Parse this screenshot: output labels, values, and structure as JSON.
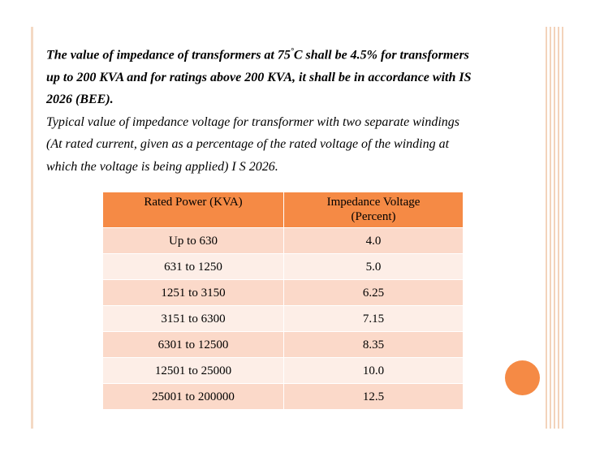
{
  "paragraph_bold": {
    "line1_before_degree": "The value of impedance of transformers at 75",
    "degree": "°",
    "line1_after_degree": "C shall be 4.5% for transformers",
    "line2": "up to 200 KVA and for ratings above 200 KVA, it shall be in accordance with IS",
    "line3": "2026 (BEE)."
  },
  "paragraph_italic": {
    "line1": "Typical value of impedance voltage for transformer with two separate windings",
    "line2": "(At rated current, given as a percentage of the rated voltage of the winding at",
    "line3": "which the voltage is being applied) I S 2026."
  },
  "table": {
    "headers": {
      "rated_power": "Rated Power (KVA)",
      "impedance_line1": "Impedance Voltage",
      "impedance_line2": "(Percent)"
    },
    "rows": [
      {
        "power": "Up to 630",
        "impedance": "4.0"
      },
      {
        "power": "631 to 1250",
        "impedance": "5.0"
      },
      {
        "power": "1251 to 3150",
        "impedance": "6.25"
      },
      {
        "power": "3151 to 6300",
        "impedance": "7.15"
      },
      {
        "power": "6301 to 12500",
        "impedance": "8.35"
      },
      {
        "power": "12501 to 25000",
        "impedance": "10.0"
      },
      {
        "power": "25001 to 200000",
        "impedance": "12.5"
      }
    ]
  },
  "colors": {
    "accent": "#f58a45",
    "row_dark": "#fbd9c9",
    "row_light": "#fdeee7",
    "decoration": "#f3d3bb"
  }
}
